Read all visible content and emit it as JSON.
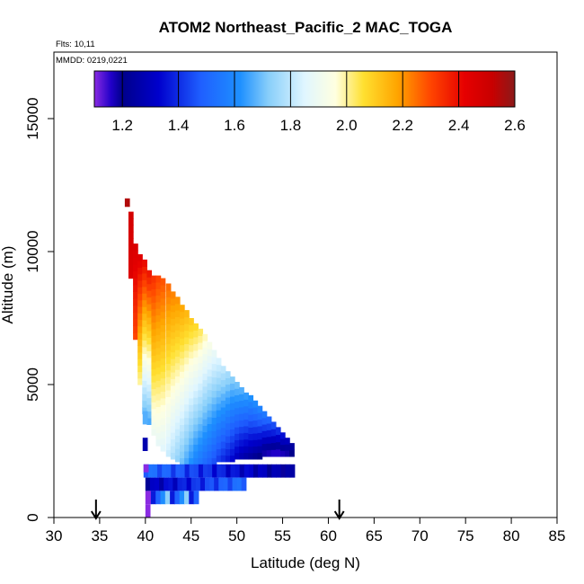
{
  "chart_data": {
    "type": "heatmap",
    "title": "ATOM2 Northeast_Pacific_2 MAC_TOGA",
    "flights_label": "Flts: 10,11",
    "dates_label": "MMDD: 0219,0221",
    "xlabel": "Latitude (deg N)",
    "ylabel": "Altitude (m)",
    "xlim": [
      30,
      85
    ],
    "ylim": [
      0,
      17500
    ],
    "x_ticks": [
      "30",
      "35",
      "40",
      "45",
      "50",
      "55",
      "60",
      "65",
      "70",
      "75",
      "80",
      "85"
    ],
    "x_tick_values": [
      30,
      35,
      40,
      45,
      50,
      55,
      60,
      65,
      70,
      75,
      80,
      85
    ],
    "y_ticks": [
      "0",
      "5000",
      "10000",
      "15000"
    ],
    "y_tick_values": [
      0,
      5000,
      10000,
      15000
    ],
    "colorbar": {
      "range": [
        1.1,
        2.6
      ],
      "ticks": [
        "1.2",
        "1.4",
        "1.6",
        "1.8",
        "2.0",
        "2.2",
        "2.4",
        "2.6"
      ],
      "tick_values": [
        1.2,
        1.4,
        1.6,
        1.8,
        2.0,
        2.2,
        2.4,
        2.6
      ],
      "stops": [
        {
          "v": 1.1,
          "c": "#8a2be2"
        },
        {
          "v": 1.16,
          "c": "#2000c8"
        },
        {
          "v": 1.2,
          "c": "#00008b"
        },
        {
          "v": 1.33,
          "c": "#0000cd"
        },
        {
          "v": 1.48,
          "c": "#1f5fff"
        },
        {
          "v": 1.62,
          "c": "#1e90ff"
        },
        {
          "v": 1.72,
          "c": "#87cefa"
        },
        {
          "v": 1.85,
          "c": "#e0f6ff"
        },
        {
          "v": 1.96,
          "c": "#ffffe0"
        },
        {
          "v": 2.06,
          "c": "#ffe030"
        },
        {
          "v": 2.18,
          "c": "#ffa500"
        },
        {
          "v": 2.3,
          "c": "#ff4500"
        },
        {
          "v": 2.42,
          "c": "#e60000"
        },
        {
          "v": 2.52,
          "c": "#c80000"
        },
        {
          "v": 2.6,
          "c": "#8b1a1a"
        }
      ]
    },
    "arrow_latitudes": [
      34.6,
      61.2
    ],
    "columns": [
      {
        "lat": 38.0,
        "bottom": 11700,
        "top": 12000,
        "vb": 2.55,
        "vt": 2.55
      },
      {
        "lat": 38.4,
        "bottom": 9000,
        "top": 11500,
        "vb": 2.45,
        "vt": 2.48
      },
      {
        "lat": 38.9,
        "bottom": 6700,
        "top": 10300,
        "vb": 2.3,
        "vt": 2.46
      },
      {
        "lat": 39.4,
        "bottom": 5000,
        "top": 9900,
        "vb": 2.0,
        "vt": 2.44
      },
      {
        "lat": 39.9,
        "bottom": 3900,
        "top": 9700,
        "vb": 1.7,
        "vt": 2.4
      },
      {
        "lat": 40.4,
        "bottom": 3500,
        "top": 9300,
        "vb": 1.66,
        "vt": 2.38
      },
      {
        "lat": 40.9,
        "bottom": 3100,
        "top": 9100,
        "vb": 1.9,
        "vt": 2.33
      },
      {
        "lat": 41.4,
        "bottom": 2700,
        "top": 9100,
        "vb": 1.88,
        "vt": 2.3
      },
      {
        "lat": 41.9,
        "bottom": 2500,
        "top": 9000,
        "vb": 1.86,
        "vt": 2.28
      },
      {
        "lat": 42.5,
        "bottom": 2300,
        "top": 8800,
        "vb": 1.82,
        "vt": 2.25
      },
      {
        "lat": 43.0,
        "bottom": 2200,
        "top": 8500,
        "vb": 1.78,
        "vt": 2.22
      },
      {
        "lat": 43.5,
        "bottom": 2100,
        "top": 8300,
        "vb": 1.74,
        "vt": 2.2
      },
      {
        "lat": 44.0,
        "bottom": 2000,
        "top": 8000,
        "vb": 1.7,
        "vt": 2.17
      },
      {
        "lat": 44.5,
        "bottom": 2000,
        "top": 7800,
        "vb": 1.66,
        "vt": 2.14
      },
      {
        "lat": 45.0,
        "bottom": 2000,
        "top": 7500,
        "vb": 1.62,
        "vt": 2.1
      },
      {
        "lat": 45.5,
        "bottom": 2000,
        "top": 7300,
        "vb": 1.58,
        "vt": 2.07
      },
      {
        "lat": 46.0,
        "bottom": 2000,
        "top": 7100,
        "vb": 1.55,
        "vt": 2.03
      },
      {
        "lat": 46.5,
        "bottom": 2000,
        "top": 6900,
        "vb": 1.52,
        "vt": 1.98
      },
      {
        "lat": 47.0,
        "bottom": 2000,
        "top": 6600,
        "vb": 1.49,
        "vt": 1.93
      },
      {
        "lat": 47.5,
        "bottom": 2000,
        "top": 6300,
        "vb": 1.46,
        "vt": 1.88
      },
      {
        "lat": 48.0,
        "bottom": 2100,
        "top": 6000,
        "vb": 1.43,
        "vt": 1.84
      },
      {
        "lat": 48.5,
        "bottom": 2100,
        "top": 5700,
        "vb": 1.4,
        "vt": 1.8
      },
      {
        "lat": 49.0,
        "bottom": 2100,
        "top": 5500,
        "vb": 1.37,
        "vt": 1.76
      },
      {
        "lat": 49.5,
        "bottom": 2100,
        "top": 5300,
        "vb": 1.34,
        "vt": 1.72
      },
      {
        "lat": 50.0,
        "bottom": 2200,
        "top": 5100,
        "vb": 1.31,
        "vt": 1.7
      },
      {
        "lat": 50.5,
        "bottom": 2200,
        "top": 4900,
        "vb": 1.28,
        "vt": 1.67
      },
      {
        "lat": 51.0,
        "bottom": 2200,
        "top": 4700,
        "vb": 1.26,
        "vt": 1.64
      },
      {
        "lat": 51.5,
        "bottom": 2200,
        "top": 4600,
        "vb": 1.24,
        "vt": 1.62
      },
      {
        "lat": 52.0,
        "bottom": 2200,
        "top": 4400,
        "vb": 1.22,
        "vt": 1.6
      },
      {
        "lat": 52.5,
        "bottom": 2200,
        "top": 4200,
        "vb": 1.2,
        "vt": 1.58
      },
      {
        "lat": 53.0,
        "bottom": 2300,
        "top": 4000,
        "vb": 1.18,
        "vt": 1.55
      },
      {
        "lat": 53.5,
        "bottom": 2300,
        "top": 3800,
        "vb": 1.17,
        "vt": 1.5
      },
      {
        "lat": 54.0,
        "bottom": 2300,
        "top": 3600,
        "vb": 1.16,
        "vt": 1.45
      },
      {
        "lat": 54.5,
        "bottom": 2300,
        "top": 3400,
        "vb": 1.16,
        "vt": 1.4
      },
      {
        "lat": 55.0,
        "bottom": 2300,
        "top": 3200,
        "vb": 1.17,
        "vt": 1.35
      },
      {
        "lat": 55.5,
        "bottom": 2300,
        "top": 3000,
        "vb": 1.18,
        "vt": 1.3
      },
      {
        "lat": 56.0,
        "bottom": 2300,
        "top": 2800,
        "vb": 1.2,
        "vt": 1.24
      }
    ],
    "bands": [
      {
        "lat0": 39.8,
        "lat1": 56.3,
        "bottom": 1500,
        "top": 2000,
        "v_start": 1.55,
        "v_end": 1.25
      },
      {
        "lat0": 40.0,
        "lat1": 51.0,
        "bottom": 1000,
        "top": 1500,
        "v_start": 1.3,
        "v_end": 1.55
      }
    ],
    "patches": [
      {
        "lat0": 39.7,
        "lat1": 40.2,
        "bottom": 2500,
        "top": 3000,
        "v": 1.45
      },
      {
        "lat0": 39.7,
        "lat1": 40.2,
        "bottom": 3500,
        "top": 4000,
        "v": 1.85
      },
      {
        "lat0": 39.8,
        "lat1": 40.3,
        "bottom": 1700,
        "top": 2000,
        "v": 1.25
      },
      {
        "lat0": 40.0,
        "lat1": 40.6,
        "bottom": 500,
        "top": 1000,
        "v": 1.2
      },
      {
        "lat0": 40.6,
        "lat1": 45.8,
        "bottom": 500,
        "top": 1000,
        "v": 1.55
      },
      {
        "lat0": 40.0,
        "lat1": 40.5,
        "bottom": 0,
        "top": 500,
        "v": 1.12
      }
    ]
  }
}
